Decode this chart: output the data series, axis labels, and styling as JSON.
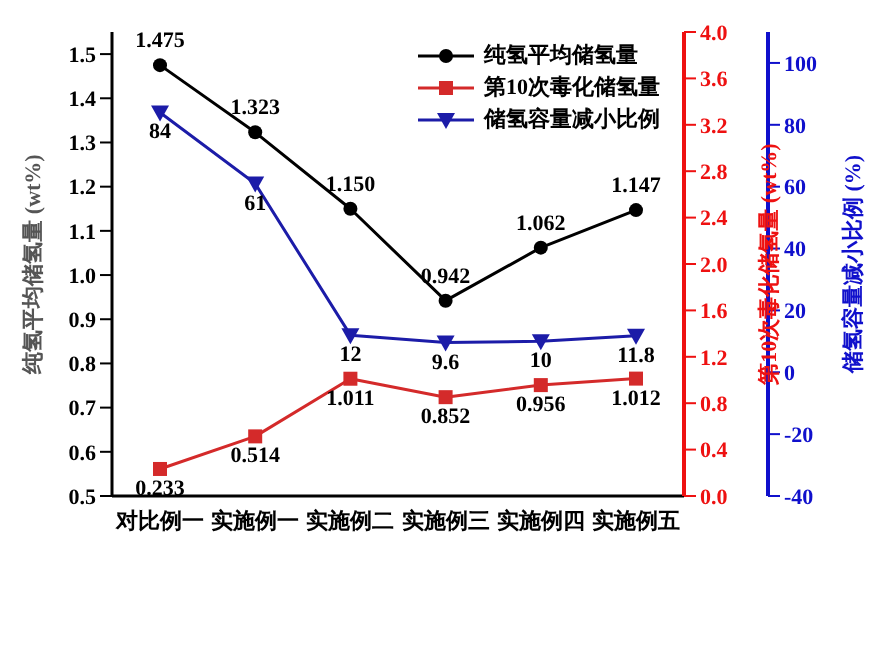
{
  "chart_data": {
    "type": "line",
    "ylabel": "纯氢平均储氢量 (wt%)",
    "y2label": "第10次毒化储氢量 (wt%)",
    "y3label": "储氢容量减小比例 (%)",
    "categories": [
      "对比例一",
      "实施例一",
      "实施例二",
      "实施例三",
      "实施例四",
      "实施例五"
    ],
    "ylim": [
      0.5,
      1.55
    ],
    "yticks": [
      0.5,
      0.6,
      0.7,
      0.8,
      0.9,
      {
        "value": 1,
        "label": "1.0"
      },
      1.1,
      1.2,
      1.3,
      1.4,
      1.5
    ],
    "y2lim": [
      0,
      4
    ],
    "y2ticks": [
      {
        "value": 0,
        "label": "0.0"
      },
      0.4,
      0.8,
      1.2,
      1.6,
      {
        "value": 2,
        "label": "2.0"
      },
      2.4,
      2.8,
      3.2,
      3.6,
      {
        "value": 4,
        "label": "4.0"
      }
    ],
    "y3lim": [
      -40,
      110
    ],
    "y3ticks": [
      -40,
      -20,
      0,
      20,
      40,
      60,
      80,
      100
    ],
    "series": [
      {
        "name": "纯氢平均储氢量",
        "color": "#000000",
        "marker": "circle",
        "values": [
          1.475,
          1.323,
          1.15,
          0.942,
          1.062,
          1.147
        ],
        "value_labels": [
          "1.475",
          "1.323",
          "1.150",
          "0.942",
          "1.062",
          "1.147"
        ]
      },
      {
        "name": "第10次毒化储氢量",
        "color": "#d42a2a",
        "marker": "square",
        "axis": "y2",
        "values": [
          0.233,
          0.514,
          1.011,
          0.852,
          0.956,
          1.012
        ],
        "value_labels": [
          "0.233",
          "0.514",
          "1.011",
          "0.852",
          "0.956",
          "1.012"
        ]
      },
      {
        "name": "储氢容量减小比例",
        "color": "#1c1ca8",
        "marker": "triangle",
        "axis": "y3",
        "values": [
          84,
          61,
          12,
          9.6,
          10,
          11.8
        ],
        "value_labels": [
          "84",
          "61",
          "12",
          "9.6",
          "10",
          "11.8"
        ]
      }
    ],
    "legend": "top right",
    "grid": false
  }
}
